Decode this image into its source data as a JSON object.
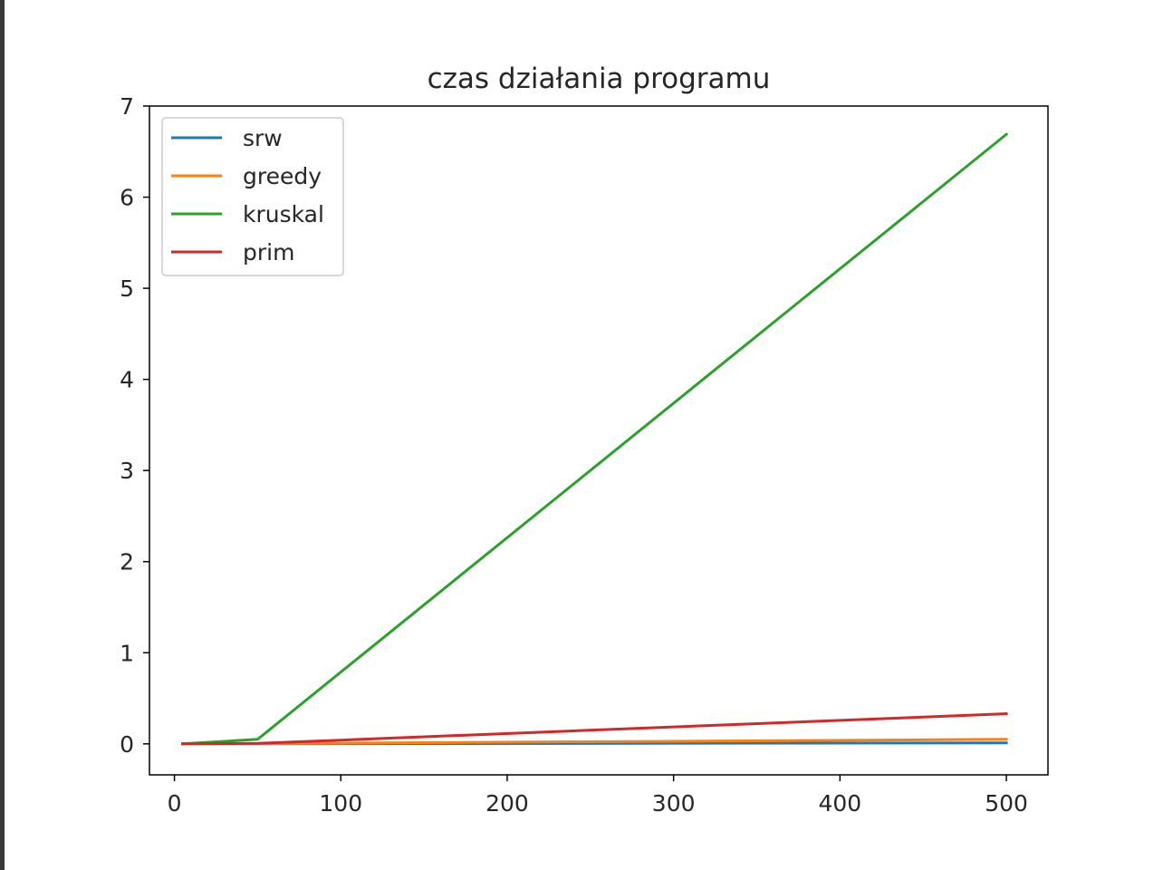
{
  "chart_data": {
    "type": "line",
    "title": "czas działania programu",
    "xlabel": "",
    "ylabel": "",
    "xlim": [
      -15,
      525
    ],
    "ylim": [
      -0.34,
      7.0
    ],
    "xticks": [
      0,
      100,
      200,
      300,
      400,
      500
    ],
    "yticks": [
      0,
      1,
      2,
      3,
      4,
      5,
      6,
      7
    ],
    "grid": false,
    "legend_position": "upper-left",
    "x": [
      5,
      50,
      500
    ],
    "series": [
      {
        "name": "srw",
        "color": "#1f77b4",
        "values": [
          0.0,
          0.001,
          0.01
        ]
      },
      {
        "name": "greedy",
        "color": "#ff7f0e",
        "values": [
          0.0,
          0.002,
          0.05
        ]
      },
      {
        "name": "kruskal",
        "color": "#2ca02c",
        "values": [
          0.0,
          0.05,
          6.69
        ]
      },
      {
        "name": "prim",
        "color": "#d62728",
        "values": [
          0.0,
          0.005,
          0.33
        ]
      }
    ]
  }
}
